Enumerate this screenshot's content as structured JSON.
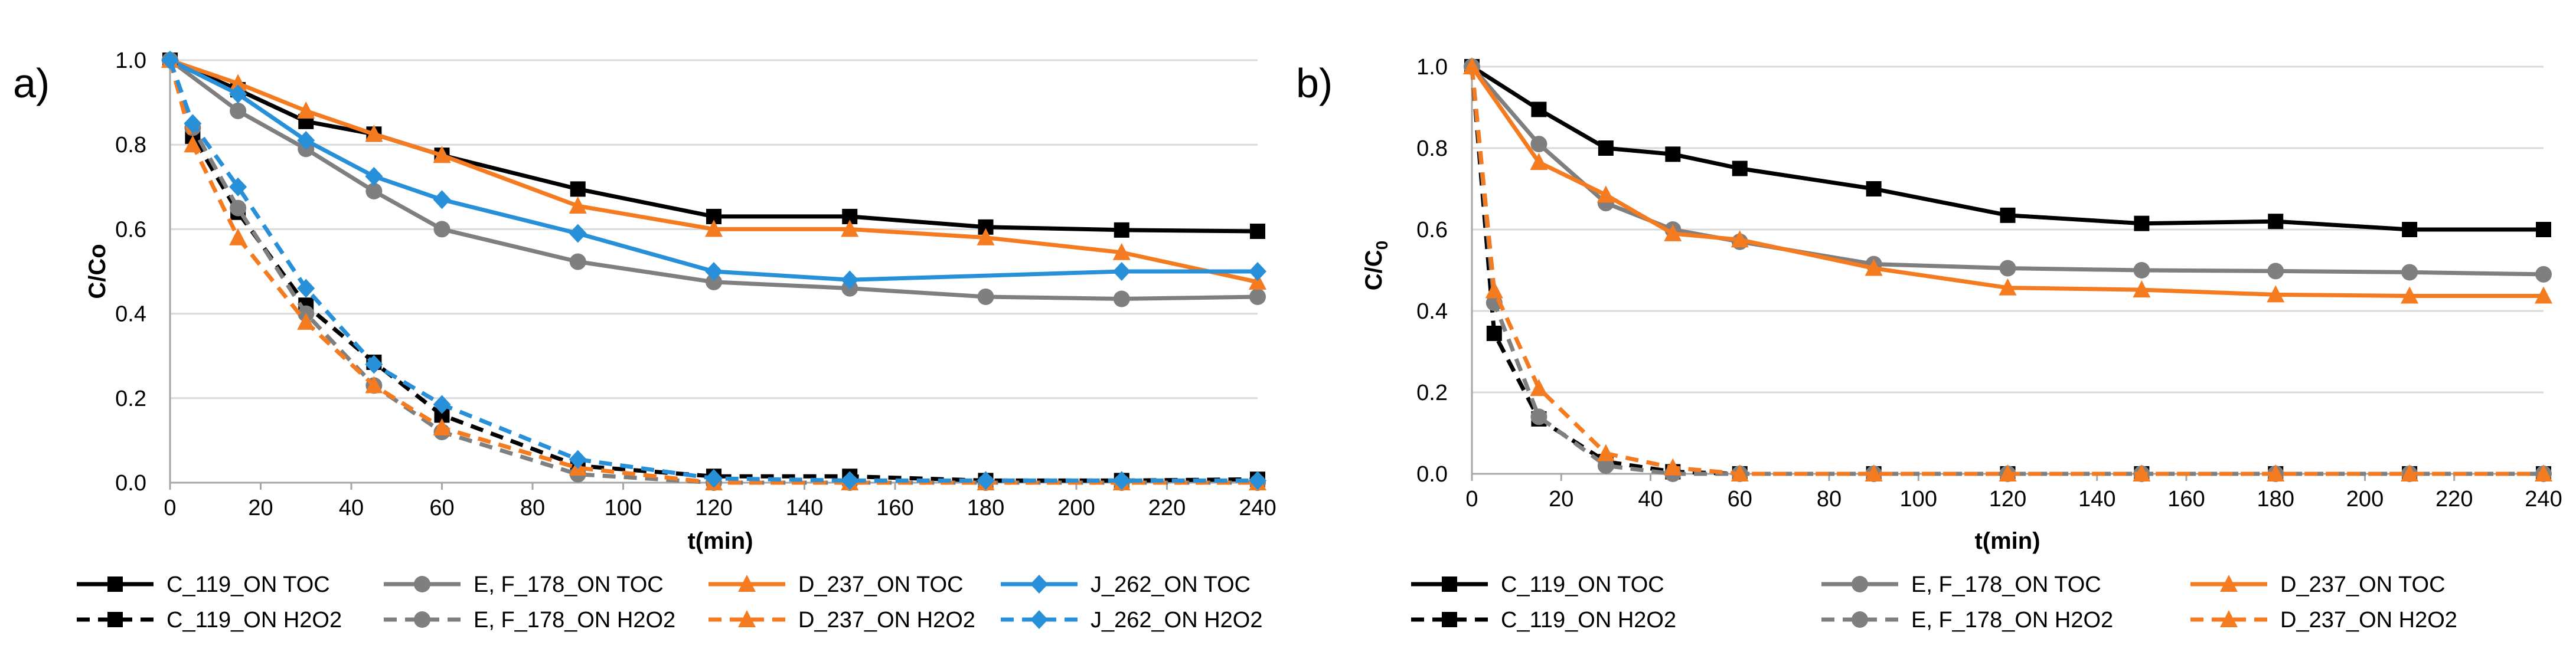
{
  "colors": {
    "C_119": "#000000",
    "E_F_178": "#7f7f7f",
    "D_237": "#f47b20",
    "J_262": "#2790d9",
    "gridline": "#d9d9d9",
    "axis": "#a6a6a6"
  },
  "chart_data": [
    {
      "type": "line",
      "panel_label": "a)",
      "xlabel": "t(min)",
      "ylabel": "C/Co",
      "xlim": [
        0,
        240
      ],
      "ylim": [
        0,
        1.0
      ],
      "xticks": [
        0,
        20,
        40,
        60,
        80,
        100,
        120,
        140,
        160,
        180,
        200,
        220,
        240
      ],
      "yticks": [
        0,
        0.2,
        0.4,
        0.6,
        0.8,
        1.0
      ],
      "xtick_labels": [
        "0",
        "20",
        "40",
        "60",
        "80",
        "100",
        "120",
        "140",
        "160",
        "180",
        "200",
        "220",
        "240"
      ],
      "ytick_labels": [
        "0.0",
        "0.2",
        "0.4",
        "0.6",
        "0.8",
        "1.0"
      ],
      "grid": "horizontal",
      "legend_position": "bottom",
      "series": [
        {
          "name": "C_119_ON TOC",
          "color_key": "C_119",
          "dash": "solid",
          "marker": "square",
          "x": [
            0,
            15,
            30,
            45,
            60,
            90,
            120,
            150,
            180,
            210,
            240
          ],
          "y": [
            1.0,
            0.93,
            0.855,
            0.825,
            0.775,
            0.695,
            0.63,
            0.63,
            0.605,
            0.598,
            0.595
          ]
        },
        {
          "name": "E, F_178_ON TOC",
          "color_key": "E_F_178",
          "dash": "solid",
          "marker": "circle",
          "x": [
            0,
            15,
            30,
            45,
            60,
            90,
            120,
            150,
            180,
            210,
            240
          ],
          "y": [
            1.0,
            0.88,
            0.79,
            0.69,
            0.6,
            0.523,
            0.475,
            0.46,
            0.44,
            0.435,
            0.44
          ]
        },
        {
          "name": "D_237_ON TOC",
          "color_key": "D_237",
          "dash": "solid",
          "marker": "triangle",
          "x": [
            0,
            15,
            30,
            45,
            60,
            90,
            120,
            150,
            180,
            210,
            240
          ],
          "y": [
            1.0,
            0.945,
            0.88,
            0.825,
            0.775,
            0.655,
            0.6,
            0.6,
            0.58,
            0.545,
            0.475
          ]
        },
        {
          "name": "J_262_ON TOC",
          "color_key": "J_262",
          "dash": "solid",
          "marker": "diamond",
          "x": [
            0,
            15,
            30,
            45,
            60,
            90,
            120,
            150,
            210,
            240
          ],
          "y": [
            1.0,
            0.92,
            0.81,
            0.725,
            0.67,
            0.59,
            0.5,
            0.48,
            0.5,
            0.5
          ]
        },
        {
          "name": "C_119_ON H2O2",
          "color_key": "C_119",
          "dash": "dashed",
          "marker": "square",
          "x": [
            0,
            5,
            15,
            30,
            45,
            60,
            90,
            120,
            150,
            180,
            210,
            240
          ],
          "y": [
            1.0,
            0.82,
            0.64,
            0.42,
            0.285,
            0.16,
            0.04,
            0.015,
            0.015,
            0.005,
            0.005,
            0.008
          ]
        },
        {
          "name": "E, F_178_ON H2O2",
          "color_key": "E_F_178",
          "dash": "dashed",
          "marker": "circle",
          "x": [
            0,
            5,
            15,
            30,
            45,
            60,
            90,
            120,
            150,
            180,
            210,
            240
          ],
          "y": [
            1.0,
            0.84,
            0.65,
            0.4,
            0.23,
            0.12,
            0.02,
            0.0,
            0.0,
            0.0,
            0.0,
            0.0
          ]
        },
        {
          "name": "D_237_ON H2O2",
          "color_key": "D_237",
          "dash": "dashed",
          "marker": "triangle",
          "x": [
            0,
            5,
            15,
            30,
            45,
            60,
            90,
            120,
            150,
            180,
            210,
            240
          ],
          "y": [
            1.0,
            0.8,
            0.58,
            0.38,
            0.23,
            0.13,
            0.035,
            0.0,
            0.0,
            0.0,
            0.0,
            0.0
          ]
        },
        {
          "name": "J_262_ON H2O2",
          "color_key": "J_262",
          "dash": "dashed",
          "marker": "diamond",
          "x": [
            0,
            5,
            15,
            30,
            45,
            60,
            90,
            120,
            150,
            180,
            210,
            240
          ],
          "y": [
            1.0,
            0.85,
            0.7,
            0.46,
            0.28,
            0.185,
            0.055,
            0.01,
            0.005,
            0.005,
            0.005,
            0.005
          ]
        }
      ]
    },
    {
      "type": "line",
      "panel_label": "b)",
      "xlabel": "t(min)",
      "ylabel": "C/C0",
      "ylabel_main": "C/C",
      "ylabel_subscript": "0",
      "xlim": [
        0,
        240
      ],
      "ylim": [
        0,
        1.0
      ],
      "xticks": [
        0,
        20,
        40,
        60,
        80,
        100,
        120,
        140,
        160,
        180,
        200,
        220,
        240
      ],
      "yticks": [
        0,
        0.2,
        0.4,
        0.6,
        0.8,
        1.0
      ],
      "xtick_labels": [
        "0",
        "20",
        "40",
        "60",
        "80",
        "100",
        "120",
        "140",
        "160",
        "180",
        "200",
        "220",
        "240"
      ],
      "ytick_labels": [
        "0.0",
        "0.2",
        "0.4",
        "0.6",
        "0.8",
        "1.0"
      ],
      "grid": "horizontal",
      "legend_position": "bottom",
      "series": [
        {
          "name": "C_119_ON TOC",
          "color_key": "C_119",
          "dash": "solid",
          "marker": "square",
          "x": [
            0,
            15,
            30,
            45,
            60,
            90,
            120,
            150,
            180,
            210,
            240
          ],
          "y": [
            1.0,
            0.895,
            0.8,
            0.785,
            0.75,
            0.7,
            0.635,
            0.615,
            0.62,
            0.6,
            0.6
          ]
        },
        {
          "name": "E, F_178_ON TOC",
          "color_key": "E_F_178",
          "dash": "solid",
          "marker": "circle",
          "x": [
            0,
            15,
            30,
            45,
            60,
            90,
            120,
            150,
            180,
            210,
            240
          ],
          "y": [
            1.0,
            0.81,
            0.665,
            0.6,
            0.57,
            0.515,
            0.505,
            0.5,
            0.498,
            0.495,
            0.49
          ]
        },
        {
          "name": "D_237_ON TOC",
          "color_key": "D_237",
          "dash": "solid",
          "marker": "triangle",
          "x": [
            0,
            15,
            30,
            45,
            60,
            90,
            120,
            150,
            180,
            210,
            240
          ],
          "y": [
            1.0,
            0.765,
            0.685,
            0.59,
            0.575,
            0.505,
            0.457,
            0.452,
            0.44,
            0.437,
            0.437
          ]
        },
        {
          "name": "C_119_ON H2O2",
          "color_key": "C_119",
          "dash": "dashed",
          "marker": "square",
          "x": [
            0,
            5,
            15,
            30,
            45,
            60,
            90,
            120,
            150,
            180,
            210,
            240
          ],
          "y": [
            1.0,
            0.345,
            0.135,
            0.03,
            0.005,
            0.0,
            0.0,
            0.0,
            0.0,
            0.0,
            0.0,
            0.0
          ]
        },
        {
          "name": "E, F_178_ON H2O2",
          "color_key": "E_F_178",
          "dash": "dashed",
          "marker": "circle",
          "x": [
            0,
            5,
            15,
            30,
            45,
            60,
            90,
            120,
            150,
            180,
            210,
            240
          ],
          "y": [
            1.0,
            0.42,
            0.14,
            0.02,
            0.0,
            0.0,
            0.0,
            0.0,
            0.0,
            0.0,
            0.0,
            0.0
          ]
        },
        {
          "name": "D_237_ON H2O2",
          "color_key": "D_237",
          "dash": "dashed",
          "marker": "triangle",
          "x": [
            0,
            5,
            15,
            30,
            45,
            60,
            90,
            120,
            150,
            180,
            210,
            240
          ],
          "y": [
            1.0,
            0.45,
            0.21,
            0.05,
            0.015,
            0.0,
            0.0,
            0.0,
            0.0,
            0.0,
            0.0,
            0.0
          ]
        }
      ]
    }
  ]
}
